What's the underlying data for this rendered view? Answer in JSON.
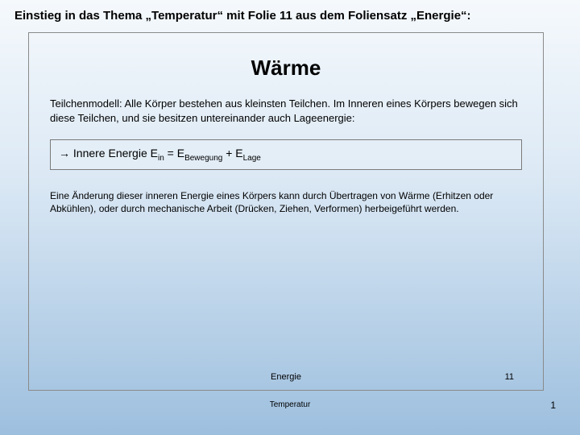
{
  "outer": {
    "title": "Einstieg in das Thema „Temperatur“ mit Folie 11 aus dem Foliensatz „Energie“:",
    "footer_label": "Temperatur",
    "footer_page": "1"
  },
  "slide": {
    "heading": "Wärme",
    "intro": "Teilchenmodell: Alle Körper bestehen aus kleinsten Teilchen. Im Inneren eines Körpers bewegen sich diese Teilchen, und sie besitzen untereinander auch Lageenergie:",
    "formula": {
      "arrow": "→",
      "lead": " Innere Energie E",
      "sub1": "in",
      "mid1": " = E",
      "sub2": "Bewegung",
      "mid2": "  + E",
      "sub3": "Lage"
    },
    "body": "Eine Änderung dieser inneren Energie eines Körpers kann durch Übertragen von Wärme (Erhitzen oder Abkühlen), oder durch mechanische Arbeit (Drücken, Ziehen, Verformen) herbeigeführt werden.",
    "footer_label": "Energie",
    "footer_page": "11"
  }
}
